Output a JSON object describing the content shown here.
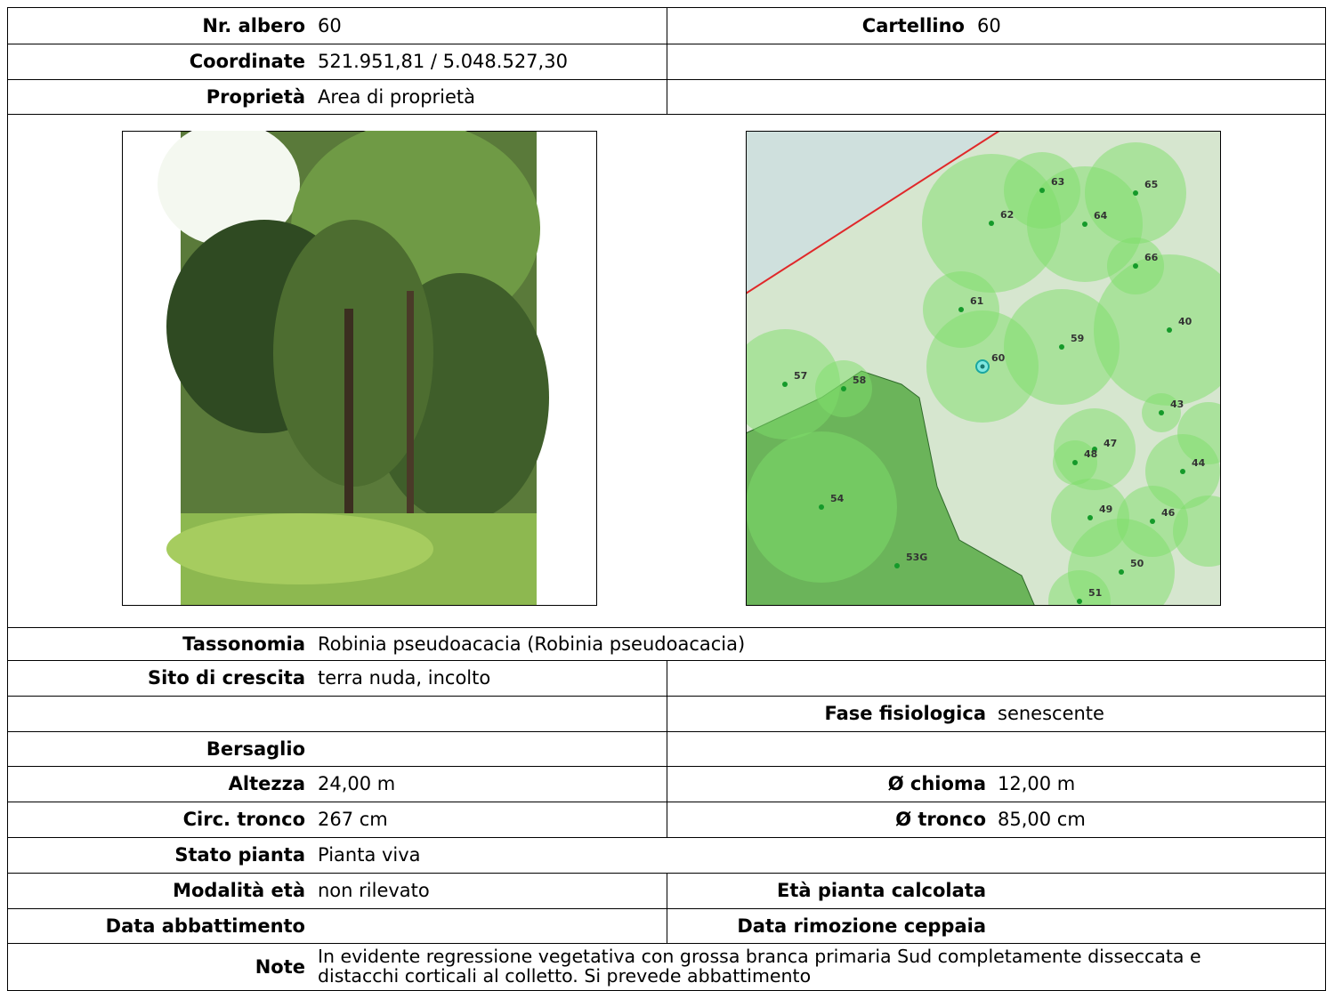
{
  "nr_albero": {
    "label": "Nr. albero",
    "value": "60"
  },
  "cartellino": {
    "label": "Cartellino",
    "value": "60"
  },
  "coordinate": {
    "label": "Coordinate",
    "value": "521.951,81 / 5.048.527,30"
  },
  "proprieta": {
    "label": "Proprietà",
    "value": "Area di proprietà"
  },
  "map": {
    "points": [
      "63",
      "65",
      "62",
      "64",
      "66",
      "61",
      "40",
      "59",
      "60",
      "57",
      "58",
      "43",
      "47",
      "48",
      "44",
      "54",
      "49",
      "46",
      "50",
      "53G",
      "51"
    ]
  },
  "tassonomia": {
    "label": "Tassonomia",
    "value": "Robinia pseudoacacia (Robinia pseudoacacia)"
  },
  "sito": {
    "label": "Sito di crescita",
    "value": "terra nuda, incolto"
  },
  "fase": {
    "label": "Fase fisiologica",
    "value": "senescente"
  },
  "bersaglio": {
    "label": "Bersaglio"
  },
  "altezza": {
    "label": "Altezza",
    "value": "24,00 m"
  },
  "chioma": {
    "label": "Ø chioma",
    "value": "12,00 m"
  },
  "circ": {
    "label": "Circ. tronco",
    "value": "267 cm"
  },
  "tronco": {
    "label": "Ø tronco",
    "value": "85,00 cm"
  },
  "stato": {
    "label": "Stato pianta",
    "value": "Pianta viva"
  },
  "modalita": {
    "label": "Modalità età",
    "value": "non rilevato"
  },
  "eta": {
    "label": "Età pianta calcolata"
  },
  "abbattimento": {
    "label": "Data abbattimento"
  },
  "ceppaia": {
    "label": "Data rimozione ceppaia"
  },
  "note": {
    "label": "Note",
    "value": "In evidente regressione vegetativa con grossa branca primaria Sud completamente disseccata e distacchi corticali al colletto. Si prevede abbattimento"
  }
}
